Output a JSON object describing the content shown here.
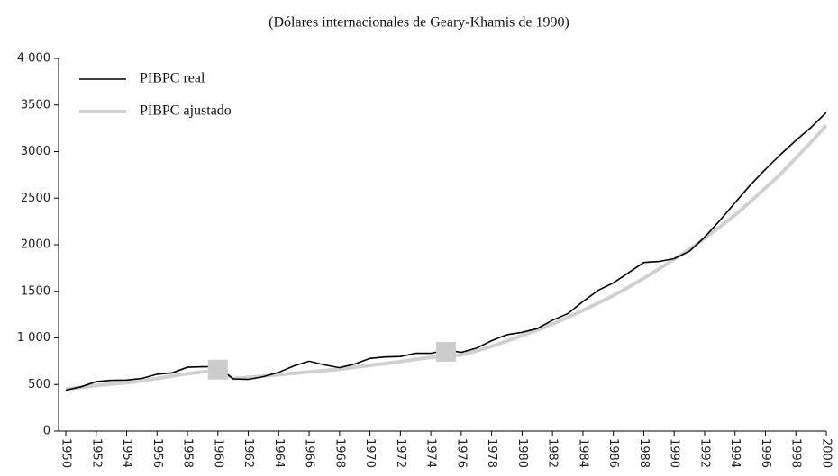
{
  "chart_data": {
    "type": "line",
    "title": "(Dólares internacionales de Geary-Khamis de 1990)",
    "x": [
      1950,
      1951,
      1952,
      1953,
      1954,
      1955,
      1956,
      1957,
      1958,
      1959,
      1960,
      1961,
      1962,
      1963,
      1964,
      1965,
      1966,
      1967,
      1968,
      1969,
      1970,
      1971,
      1972,
      1973,
      1974,
      1975,
      1976,
      1977,
      1978,
      1979,
      1980,
      1981,
      1982,
      1983,
      1984,
      1985,
      1986,
      1987,
      1988,
      1989,
      1990,
      1991,
      1992,
      1993,
      1994,
      1995,
      1996,
      1997,
      1998,
      1999,
      2000
    ],
    "series": [
      {
        "name": "PIBPC real",
        "color": "#000000",
        "values": [
          440,
          475,
          530,
          545,
          548,
          565,
          610,
          625,
          685,
          690,
          690,
          560,
          555,
          585,
          630,
          700,
          750,
          710,
          680,
          720,
          780,
          795,
          800,
          835,
          835,
          870,
          845,
          890,
          970,
          1035,
          1060,
          1100,
          1190,
          1260,
          1390,
          1510,
          1590,
          1700,
          1810,
          1820,
          1850,
          1930,
          2080,
          2260,
          2450,
          2640,
          2810,
          2970,
          3120,
          3260,
          3420
        ]
      },
      {
        "name": "PIBPC ajustado",
        "color": "#d0d0d0",
        "values": [
          450,
          470,
          490,
          505,
          520,
          540,
          565,
          590,
          615,
          635,
          650,
          565,
          575,
          590,
          605,
          620,
          635,
          650,
          665,
          685,
          705,
          725,
          745,
          770,
          790,
          805,
          815,
          860,
          910,
          965,
          1025,
          1085,
          1150,
          1220,
          1295,
          1375,
          1455,
          1545,
          1640,
          1740,
          1845,
          1950,
          2070,
          2190,
          2320,
          2460,
          2610,
          2760,
          2930,
          3100,
          3280
        ]
      }
    ],
    "markers": {
      "x": [
        1960,
        1975
      ],
      "values": [
        660,
        850
      ],
      "color": "#cccccc"
    },
    "xlim": [
      1950,
      2000
    ],
    "xticks": [
      1950,
      1952,
      1954,
      1956,
      1958,
      1960,
      1962,
      1964,
      1966,
      1968,
      1970,
      1972,
      1974,
      1976,
      1978,
      1980,
      1982,
      1984,
      1986,
      1988,
      1990,
      1992,
      1994,
      1996,
      1998,
      2000
    ],
    "ylim": [
      0,
      4000
    ],
    "yticks": [
      0,
      500,
      {
        "value": 1000,
        "label": "1 000"
      },
      1500,
      2000,
      2500,
      3000,
      3500,
      {
        "value": 4000,
        "label": "4 000"
      }
    ],
    "legend": "top-left"
  }
}
